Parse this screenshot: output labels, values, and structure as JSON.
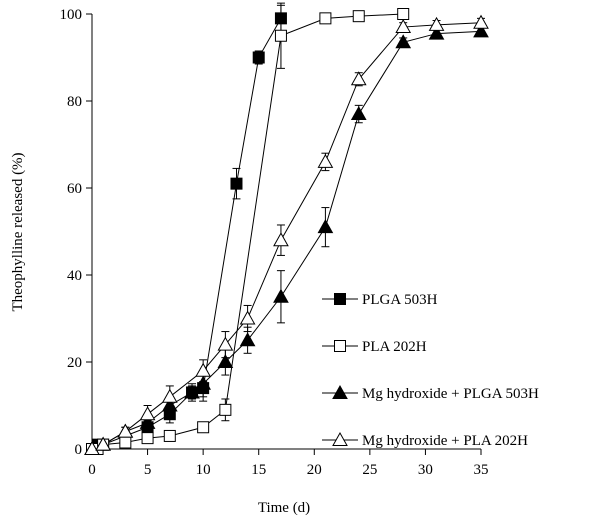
{
  "chart_data": {
    "type": "line",
    "xlabel": "Time (d)",
    "ylabel": "Theophylline released (%)",
    "xlim": [
      0,
      35
    ],
    "ylim": [
      0,
      100
    ],
    "xticks": [
      0,
      5,
      10,
      15,
      20,
      25,
      30,
      35
    ],
    "yticks": [
      0,
      20,
      40,
      60,
      80,
      100
    ],
    "grid": false,
    "legend_position": "lower-right",
    "series": [
      {
        "name": "PLGA 503H",
        "marker": "filled-square",
        "x": [
          0,
          0.5,
          1,
          5,
          7,
          9,
          10,
          13,
          15,
          17
        ],
        "y": [
          0,
          1,
          1,
          5,
          8,
          13,
          14,
          61,
          90,
          99
        ],
        "err": [
          0.5,
          0.5,
          0.5,
          1.5,
          2,
          1.5,
          3,
          3.5,
          1.5,
          3
        ]
      },
      {
        "name": "PLA 202H",
        "marker": "open-square",
        "x": [
          0,
          0.5,
          1,
          3,
          5,
          7,
          10,
          12,
          17,
          21,
          24,
          28
        ],
        "y": [
          0,
          0,
          1,
          1.5,
          2.5,
          3,
          5,
          9,
          95,
          99,
          99.5,
          100
        ],
        "err": [
          0.5,
          0.5,
          0.5,
          0.5,
          0.5,
          0.5,
          1,
          2.5,
          7.5,
          0.5,
          0.5,
          0.5
        ]
      },
      {
        "name": "Mg hydroxide + PLGA 503H",
        "marker": "filled-triangle",
        "x": [
          0,
          1,
          3,
          5,
          7,
          9,
          10,
          12,
          14,
          17,
          21,
          24,
          28,
          31,
          35
        ],
        "y": [
          0,
          1,
          4,
          6,
          10,
          13,
          15,
          20,
          25,
          35,
          51,
          77,
          93.5,
          95.5,
          96
        ],
        "err": [
          0.5,
          0.5,
          1,
          1.5,
          2,
          2,
          3,
          3,
          3,
          6,
          4.5,
          2,
          1,
          1,
          1
        ]
      },
      {
        "name": "Mg hydroxide + PLA 202H",
        "marker": "open-triangle",
        "x": [
          0,
          1,
          3,
          5,
          7,
          10,
          12,
          14,
          17,
          21,
          24,
          28,
          31,
          35
        ],
        "y": [
          0,
          1,
          4,
          8,
          12,
          18,
          24,
          30,
          48,
          66,
          85,
          97,
          97.5,
          98
        ],
        "err": [
          0.5,
          0.5,
          1,
          2,
          2.5,
          2.5,
          3,
          3,
          3.5,
          2,
          1.5,
          1,
          1,
          1
        ]
      }
    ]
  }
}
